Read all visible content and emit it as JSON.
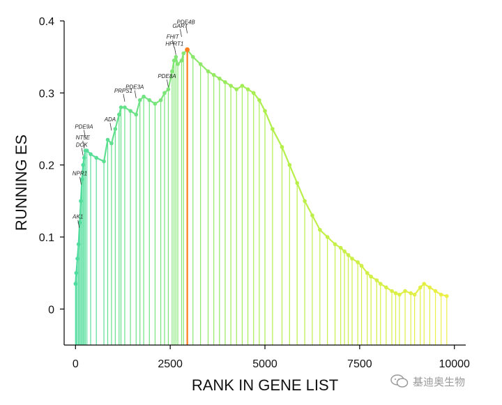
{
  "chart_data": {
    "type": "line",
    "title": "",
    "xlabel": "RANK IN GENE LIST",
    "ylabel": "RUNNING ES",
    "xlim": [
      -300,
      10300
    ],
    "ylim": [
      -0.05,
      0.4
    ],
    "xticks": [
      0,
      2500,
      5000,
      7500,
      10000
    ],
    "xtick_labels": [
      "0",
      "2500",
      "5000",
      "7500",
      "10000"
    ],
    "yticks": [
      0,
      0.1,
      0.2,
      0.3,
      0.4
    ],
    "ytick_labels": [
      "0",
      "0.1",
      "0.2",
      "0.3",
      "0.4"
    ],
    "grid": false,
    "colors": {
      "start": "#4fdc9f",
      "middle": "#b0ef4a",
      "end": "#f2ef44",
      "peak": "#ff7f1e"
    },
    "peak_x": 2950,
    "series": [
      {
        "x": [
          0,
          20,
          50,
          80,
          110,
          140,
          170,
          200,
          230,
          260,
          300,
          400,
          550,
          750,
          850,
          950,
          1050,
          1150,
          1200,
          1300,
          1450,
          1600,
          1700,
          1800,
          1950,
          2100,
          2250,
          2350,
          2450,
          2550,
          2600,
          2650,
          2700,
          2800,
          2850,
          2950,
          3100,
          3300,
          3500,
          3650,
          3800,
          3950,
          4100,
          4250,
          4400,
          4550,
          4700,
          4850,
          5000,
          5200,
          5450,
          5650,
          5850,
          6050,
          6250,
          6450,
          6650,
          6850,
          7000,
          7100,
          7200,
          7300,
          7450,
          7550,
          7700,
          7800,
          7950,
          8050,
          8200,
          8350,
          8450,
          8550,
          8700,
          8850,
          8950,
          9100,
          9200,
          9350,
          9500,
          9650,
          9800
        ],
        "y": [
          0.035,
          0.05,
          0.07,
          0.09,
          0.12,
          0.15,
          0.18,
          0.2,
          0.21,
          0.22,
          0.22,
          0.215,
          0.21,
          0.205,
          0.235,
          0.23,
          0.25,
          0.27,
          0.28,
          0.28,
          0.275,
          0.27,
          0.29,
          0.295,
          0.29,
          0.285,
          0.29,
          0.3,
          0.305,
          0.33,
          0.345,
          0.35,
          0.34,
          0.345,
          0.355,
          0.36,
          0.35,
          0.34,
          0.33,
          0.325,
          0.32,
          0.315,
          0.31,
          0.305,
          0.31,
          0.305,
          0.3,
          0.29,
          0.275,
          0.25,
          0.225,
          0.2,
          0.175,
          0.15,
          0.13,
          0.11,
          0.1,
          0.09,
          0.085,
          0.08,
          0.075,
          0.07,
          0.065,
          0.06,
          0.05,
          0.045,
          0.04,
          0.035,
          0.03,
          0.025,
          0.022,
          0.02,
          0.025,
          0.022,
          0.02,
          0.03,
          0.035,
          0.03,
          0.025,
          0.02,
          0.018
        ]
      }
    ],
    "annotations": [
      {
        "text": "AK1",
        "x": 100,
        "y": 0.11
      },
      {
        "text": "NPR1",
        "x": 150,
        "y": 0.17
      },
      {
        "text": "DCK",
        "x": 200,
        "y": 0.21
      },
      {
        "text": "NT5E",
        "x": 230,
        "y": 0.22
      },
      {
        "text": "PDE9A",
        "x": 260,
        "y": 0.235
      },
      {
        "text": "ADA",
        "x": 950,
        "y": 0.245
      },
      {
        "text": "PRPS1",
        "x": 1300,
        "y": 0.285
      },
      {
        "text": "PDE3A",
        "x": 1600,
        "y": 0.29
      },
      {
        "text": "PDE8A",
        "x": 2450,
        "y": 0.305
      },
      {
        "text": "HPRT1",
        "x": 2650,
        "y": 0.35
      },
      {
        "text": "FHIT",
        "x": 2600,
        "y": 0.36
      },
      {
        "text": "GART",
        "x": 2800,
        "y": 0.375
      },
      {
        "text": "PDE4B",
        "x": 2950,
        "y": 0.38
      }
    ]
  },
  "watermark": {
    "text": "基迪奥生物",
    "icon": "wechat-icon"
  }
}
